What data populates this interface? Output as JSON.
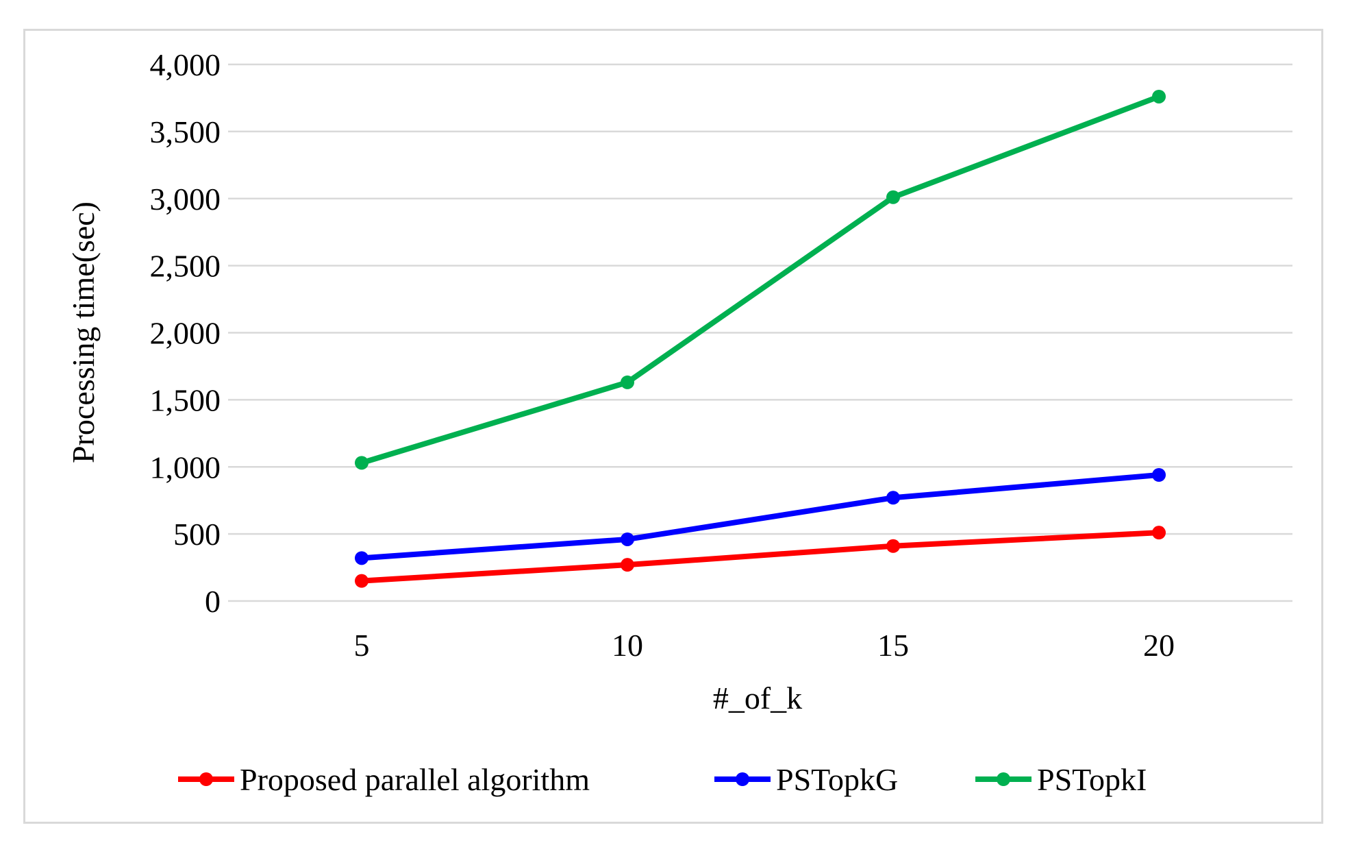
{
  "chart_data": {
    "type": "line",
    "title": "",
    "xlabel": "#_of_k",
    "ylabel": "Processing time(sec)",
    "x": [
      5,
      10,
      15,
      20
    ],
    "x_tick_labels": [
      "5",
      "10",
      "15",
      "20"
    ],
    "ylim": [
      0,
      4000
    ],
    "y_ticks": [
      0,
      500,
      1000,
      1500,
      2000,
      2500,
      3000,
      3500,
      4000
    ],
    "y_tick_labels": [
      "0",
      "500",
      "1,000",
      "1,500",
      "2,000",
      "2,500",
      "3,000",
      "3,500",
      "4,000"
    ],
    "grid": true,
    "legend_position": "bottom",
    "series": [
      {
        "name": "Proposed parallel algorithm",
        "color": "#ff0000",
        "values": [
          150,
          270,
          410,
          510
        ]
      },
      {
        "name": "PSTopkG",
        "color": "#0000ff",
        "values": [
          320,
          460,
          770,
          940
        ]
      },
      {
        "name": "PSTopkI",
        "color": "#00b050",
        "values": [
          1030,
          1630,
          3010,
          3760
        ]
      }
    ]
  }
}
